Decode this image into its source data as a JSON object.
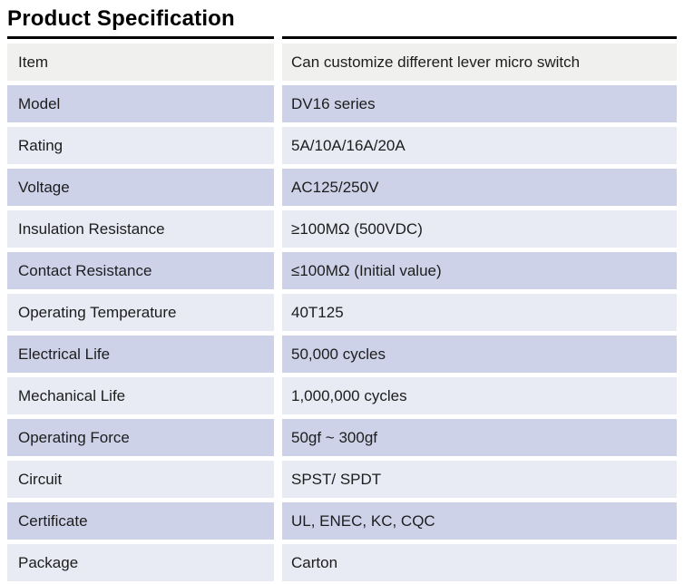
{
  "title": "Product Specification",
  "colors": {
    "row_gray": "#f0f0ee",
    "row_medium": "#cdd2e8",
    "row_light": "#e8eaf4",
    "border": "#000000",
    "text": "#1d1d1d"
  },
  "table": {
    "rows": [
      {
        "label": "Item",
        "value": "Can customize different lever micro switch",
        "tone": "gray"
      },
      {
        "label": "Model",
        "value": "DV16 series",
        "tone": "medium"
      },
      {
        "label": "Rating",
        "value": "5A/10A/16A/20A",
        "tone": "light"
      },
      {
        "label": "Voltage",
        "value": "AC125/250V",
        "tone": "medium"
      },
      {
        "label": "Insulation Resistance",
        "value": "≥100MΩ (500VDC)",
        "tone": "light"
      },
      {
        "label": "Contact Resistance",
        "value": "≤100MΩ (Initial value)",
        "tone": "medium"
      },
      {
        "label": "Operating Temperature",
        "value": "40T125",
        "tone": "light"
      },
      {
        "label": "Electrical Life",
        "value": "50,000 cycles",
        "tone": "medium"
      },
      {
        "label": "Mechanical Life",
        "value": "1,000,000 cycles",
        "tone": "light"
      },
      {
        "label": "Operating Force",
        "value": "50gf ~  300gf",
        "tone": "medium"
      },
      {
        "label": "Circuit",
        "value": "SPST/ SPDT",
        "tone": "light"
      },
      {
        "label": "Certificate",
        "value": "UL, ENEC, KC, CQC",
        "tone": "medium"
      },
      {
        "label": "Package",
        "value": "Carton",
        "tone": "light"
      }
    ]
  }
}
